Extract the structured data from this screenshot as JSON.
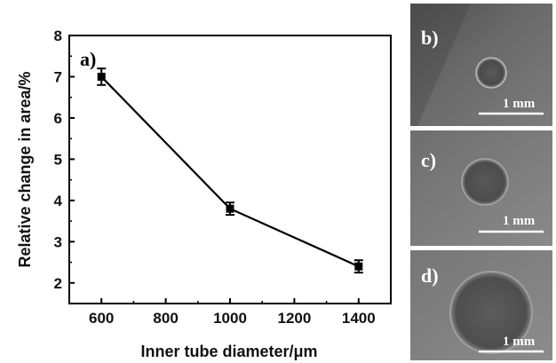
{
  "chart_data": {
    "type": "line",
    "panel_label": "a)",
    "x": [
      600,
      1000,
      1400
    ],
    "series": [
      {
        "values": [
          7.0,
          3.8,
          2.4
        ],
        "errors": [
          0.2,
          0.15,
          0.15
        ]
      }
    ],
    "xlabel": "Inner tube diameter/μm",
    "ylabel": "Relative change in area/%",
    "xlim": [
      500,
      1500
    ],
    "ylim": [
      1.5,
      8
    ],
    "xticks": [
      600,
      800,
      1000,
      1200,
      1400
    ],
    "yticks": [
      2,
      3,
      4,
      5,
      6,
      7,
      8
    ],
    "xtick_labels": [
      "600",
      "800",
      "1000",
      "1200",
      "1400"
    ],
    "ytick_labels": [
      "2",
      "3",
      "4",
      "5",
      "6",
      "7",
      "8"
    ],
    "grid": false,
    "line_color": "#000000"
  },
  "micrographs": [
    {
      "label": "b)",
      "scale_text": "1 mm",
      "hole_diameter_fraction": 0.16
    },
    {
      "label": "c)",
      "scale_text": "1 mm",
      "hole_diameter_fraction": 0.27
    },
    {
      "label": "d)",
      "scale_text": "1 mm",
      "hole_diameter_fraction": 0.44
    }
  ]
}
